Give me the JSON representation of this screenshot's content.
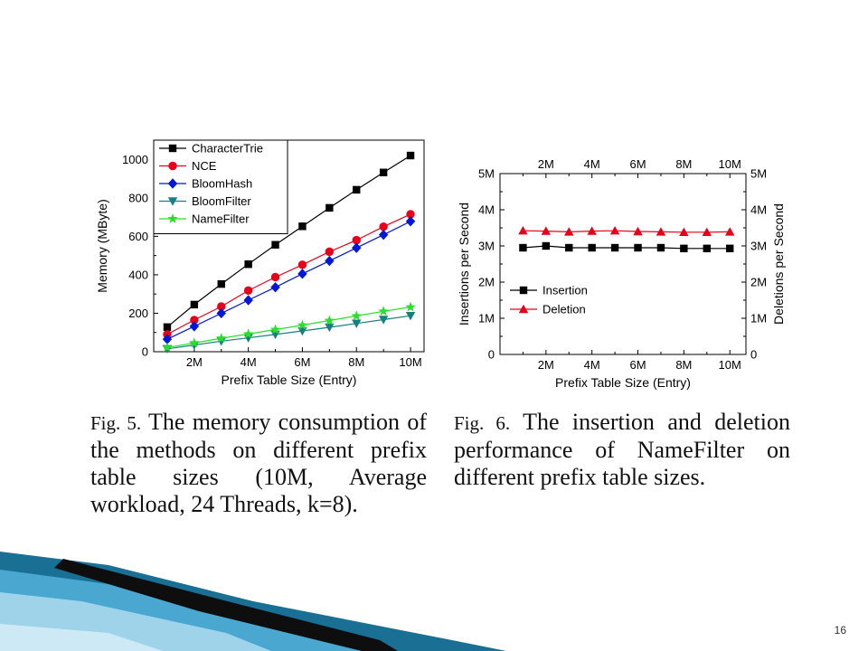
{
  "slide": {
    "page_number": "16"
  },
  "captions": [
    {
      "label": "Fig. 5.",
      "text": "The memory consumption of the methods on different prefix table sizes (10M, Average workload, 24 Threads, k=8)."
    },
    {
      "label": "Fig. 6.",
      "text": "The insertion and deletion performance of NameFilter on different prefix table sizes."
    }
  ],
  "chart_data": [
    {
      "type": "line",
      "xlabel": "Prefix Table Size (Entry)",
      "ylabel": "Memory (MByte)",
      "x": [
        1,
        2,
        3,
        4,
        5,
        6,
        7,
        8,
        9,
        10
      ],
      "xlim": [
        0.5,
        10.5
      ],
      "x_ticks": [
        2,
        4,
        6,
        8,
        10
      ],
      "x_tick_labels": [
        "2M",
        "4M",
        "6M",
        "8M",
        "10M"
      ],
      "ylim": [
        0,
        1100
      ],
      "y_ticks": [
        0,
        200,
        400,
        600,
        800,
        1000
      ],
      "y_tick_labels": [
        "0",
        "200",
        "400",
        "600",
        "800",
        "1000"
      ],
      "grid": false,
      "legend_position": "top-left",
      "series": [
        {
          "name": "CharacterTrie",
          "color": "#000000",
          "marker": "square",
          "values": [
            128,
            245,
            352,
            455,
            556,
            652,
            748,
            842,
            932,
            1020
          ]
        },
        {
          "name": "NCE",
          "color": "#e8001a",
          "marker": "circle",
          "values": [
            90,
            165,
            235,
            318,
            388,
            452,
            520,
            580,
            650,
            715
          ]
        },
        {
          "name": "BloomHash",
          "color": "#0018d6",
          "marker": "diamond",
          "values": [
            65,
            132,
            200,
            268,
            335,
            405,
            472,
            540,
            608,
            678
          ]
        },
        {
          "name": "BloomFilter",
          "color": "#168080",
          "marker": "triangle-down",
          "values": [
            15,
            35,
            55,
            72,
            90,
            108,
            127,
            147,
            167,
            187
          ]
        },
        {
          "name": "NameFilter",
          "color": "#2adf2a",
          "marker": "star",
          "values": [
            22,
            45,
            70,
            92,
            115,
            138,
            162,
            186,
            210,
            232
          ]
        }
      ]
    },
    {
      "type": "line",
      "xlabel": "Prefix Table Size (Entry)",
      "ylabel": "Insertions per Second",
      "y2label": "Deletions per Second",
      "x": [
        1,
        2,
        3,
        4,
        5,
        6,
        7,
        8,
        9,
        10
      ],
      "xlim": [
        0,
        10.7
      ],
      "x_ticks": [
        2,
        4,
        6,
        8,
        10
      ],
      "x_tick_labels": [
        "2M",
        "4M",
        "6M",
        "8M",
        "10M"
      ],
      "ylim": [
        0,
        5
      ],
      "y_ticks": [
        0,
        1,
        2,
        3,
        4,
        5
      ],
      "y_tick_labels": [
        "0",
        "1M",
        "2M",
        "3M",
        "4M",
        "5M"
      ],
      "y_unit": "millions",
      "grid": false,
      "legend_position": "center-left",
      "series": [
        {
          "name": "Insertion",
          "color": "#000000",
          "marker": "square",
          "values": [
            2.95,
            3.0,
            2.95,
            2.95,
            2.95,
            2.95,
            2.95,
            2.93,
            2.93,
            2.93
          ]
        },
        {
          "name": "Deletion",
          "color": "#e8001a",
          "marker": "triangle-up",
          "values": [
            3.42,
            3.41,
            3.39,
            3.41,
            3.42,
            3.4,
            3.39,
            3.38,
            3.38,
            3.39
          ]
        }
      ]
    }
  ]
}
